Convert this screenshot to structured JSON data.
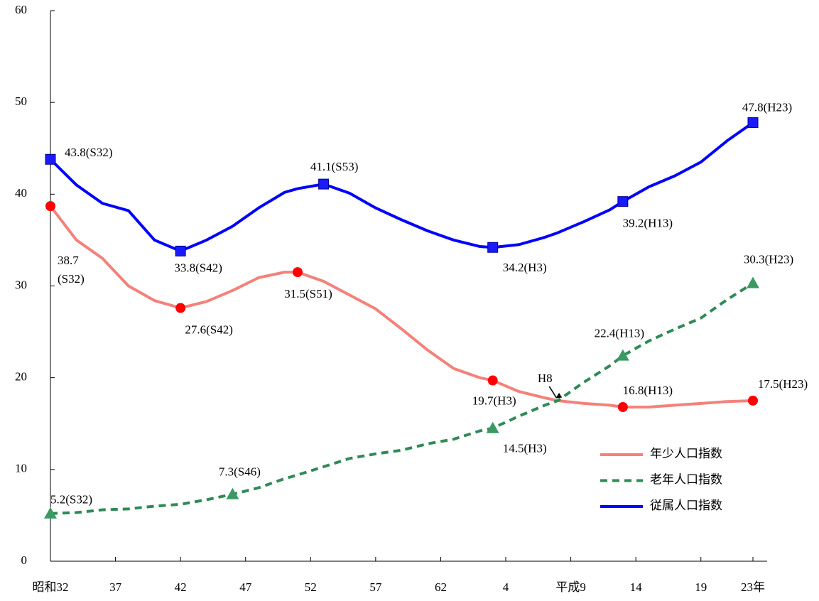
{
  "chart_data": {
    "type": "line",
    "x": [
      1957,
      1959,
      1961,
      1963,
      1965,
      1967,
      1969,
      1971,
      1973,
      1975,
      1976,
      1978,
      1980,
      1982,
      1984,
      1986,
      1988,
      1990,
      1991,
      1993,
      1995,
      1996,
      1998,
      2000,
      2001,
      2003,
      2005,
      2007,
      2009,
      2011
    ],
    "xlim": [
      1957,
      2011
    ],
    "xticks": [
      {
        "value": 1957,
        "label": "昭和32"
      },
      {
        "value": 1962,
        "label": "37"
      },
      {
        "value": 1967,
        "label": "42"
      },
      {
        "value": 1972,
        "label": "47"
      },
      {
        "value": 1977,
        "label": "52"
      },
      {
        "value": 1982,
        "label": "57"
      },
      {
        "value": 1987,
        "label": "62"
      },
      {
        "value": 1992,
        "label": "4"
      },
      {
        "value": 1997,
        "label": "平成9"
      },
      {
        "value": 2002,
        "label": "14"
      },
      {
        "value": 2007,
        "label": "19"
      },
      {
        "value": 2011,
        "label": "23年"
      }
    ],
    "ylim": [
      0,
      60
    ],
    "yticks": [
      0,
      10,
      20,
      30,
      40,
      50,
      60
    ],
    "grid": false,
    "series": [
      {
        "name": "年少人口指数",
        "color": "#f4817a",
        "marker": "circle",
        "marker_color": "#ff0000",
        "dash": false,
        "values": [
          38.7,
          35,
          33,
          30,
          28.4,
          27.6,
          28.3,
          29.5,
          30.9,
          31.5,
          31.5,
          30.5,
          29,
          27.5,
          25.3,
          23,
          21,
          20,
          19.7,
          18.5,
          17.8,
          17.5,
          17.2,
          17,
          16.8,
          16.8,
          17,
          17.2,
          17.4,
          17.5
        ],
        "value_labels": [
          "38.7(S32)",
          null,
          null,
          null,
          null,
          "27.6(S42)",
          null,
          null,
          null,
          null,
          "31.5(S51)",
          null,
          null,
          null,
          null,
          null,
          null,
          null,
          "19.7(H3)",
          null,
          null,
          null,
          null,
          null,
          "16.8(H13)",
          null,
          null,
          null,
          null,
          "17.5(H23)"
        ]
      },
      {
        "name": "老年人口指数",
        "color": "#2e8b57",
        "marker": "triangle",
        "marker_color": "#3a9a62",
        "dash": true,
        "values": [
          5.2,
          5.3,
          5.6,
          5.7,
          6,
          6.2,
          6.7,
          7.3,
          8,
          9,
          9.4,
          10.3,
          11.2,
          11.7,
          12.1,
          12.8,
          13.3,
          14.2,
          14.5,
          15.8,
          17,
          17.5,
          19.5,
          21.3,
          22.4,
          24,
          25.3,
          26.5,
          28.5,
          30.3
        ],
        "value_labels": [
          "5.2(S32)",
          null,
          null,
          null,
          null,
          null,
          null,
          "7.3(S46)",
          null,
          null,
          null,
          null,
          null,
          null,
          null,
          null,
          null,
          null,
          "14.5(H3)",
          null,
          null,
          null,
          null,
          null,
          "22.4(H13)",
          null,
          null,
          null,
          null,
          "30.3(H23)"
        ]
      },
      {
        "name": "従属人口指数",
        "color": "#0000ff",
        "marker": "square",
        "marker_color": "#1a1aff",
        "dash": false,
        "values": [
          43.8,
          41,
          39,
          38.2,
          35,
          33.8,
          35,
          36.5,
          38.5,
          40.2,
          40.6,
          41.1,
          40.1,
          38.5,
          37.2,
          36,
          35,
          34.3,
          34.2,
          34.5,
          35.3,
          35.8,
          37,
          38.3,
          39.2,
          40.8,
          42,
          43.5,
          45.8,
          47.8
        ],
        "value_labels": [
          "43.8(S32)",
          null,
          null,
          null,
          null,
          "33.8(S42)",
          null,
          null,
          null,
          null,
          null,
          "41.1(S53)",
          null,
          null,
          null,
          null,
          null,
          null,
          "34.2(H3)",
          null,
          null,
          null,
          null,
          null,
          "39.2(H13)",
          null,
          null,
          null,
          null,
          "47.8(H23)"
        ]
      }
    ],
    "annotations": [
      {
        "text": "H8",
        "x": 1996,
        "y": 17.5
      }
    ]
  }
}
